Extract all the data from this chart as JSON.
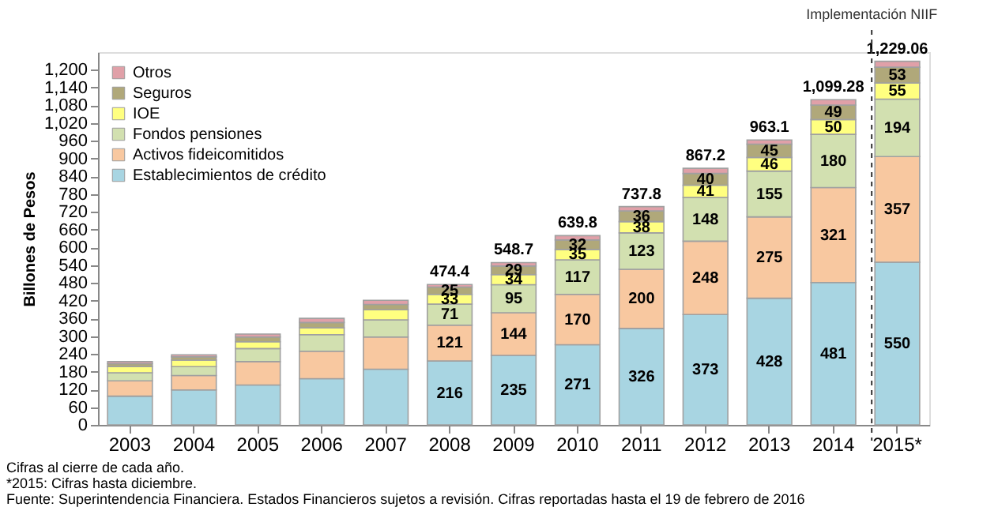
{
  "chart_data": {
    "type": "bar",
    "stacked": true,
    "ylabel": "Billones de Pesos",
    "categories": [
      "2003",
      "2004",
      "2005",
      "2006",
      "2007",
      "2008",
      "2009",
      "2010",
      "2011",
      "2012",
      "2013",
      "2014",
      "2015*"
    ],
    "series": [
      {
        "name": "Establecimientos de crédito",
        "color": "#a8d5e2",
        "values": [
          97,
          118,
          135,
          156,
          188,
          216,
          235,
          271,
          326,
          373,
          428,
          481,
          550
        ],
        "value_labels": [
          null,
          null,
          null,
          null,
          null,
          "216",
          "235",
          "271",
          "326",
          "373",
          "428",
          "481",
          "550"
        ]
      },
      {
        "name": "Activos fideicomitidos",
        "color": "#f8c8a0",
        "values": [
          52,
          49,
          79,
          93,
          109,
          121,
          144,
          170,
          200,
          248,
          275,
          321,
          357
        ],
        "value_labels": [
          null,
          null,
          null,
          null,
          null,
          "121",
          "144",
          "170",
          "200",
          "248",
          "275",
          "321",
          "357"
        ]
      },
      {
        "name": "Fondos pensiones",
        "color": "#d2e0b0",
        "values": [
          27,
          30,
          44,
          56,
          58,
          71,
          95,
          117,
          123,
          148,
          155,
          180,
          194
        ],
        "value_labels": [
          null,
          null,
          null,
          null,
          null,
          "71",
          "95",
          "117",
          "123",
          "148",
          "155",
          "180",
          "194"
        ]
      },
      {
        "name": "IOE",
        "color": "#ffff80",
        "values": [
          21,
          22,
          23,
          23,
          34,
          33,
          34,
          35,
          38,
          41,
          46,
          50,
          55
        ],
        "value_labels": [
          null,
          null,
          null,
          null,
          null,
          "33",
          "34",
          "35",
          "38",
          "41",
          "46",
          "50",
          "55"
        ]
      },
      {
        "name": "Seguros",
        "color": "#b0a87a",
        "values": [
          10,
          11,
          16,
          18,
          18,
          25,
          29,
          32,
          36,
          40,
          45,
          49,
          53
        ],
        "value_labels": [
          null,
          null,
          null,
          null,
          null,
          "25",
          "29",
          "32",
          "36",
          "40",
          "45",
          "49",
          "53"
        ]
      },
      {
        "name": "Otros",
        "color": "#e0a0a8",
        "values": [
          7,
          7,
          10,
          14,
          14,
          8.4,
          11.7,
          14.8,
          14.8,
          17.2,
          14.1,
          18.28,
          20.06
        ]
      }
    ],
    "totals": [
      null,
      null,
      null,
      null,
      null,
      "474.4",
      "548.7",
      "639.8",
      "737.8",
      "867.2",
      "963.1",
      "1,099.28",
      "1,229.06"
    ],
    "ylim": [
      0,
      1260
    ],
    "yticks": [
      0,
      60,
      120,
      180,
      240,
      300,
      360,
      420,
      480,
      540,
      600,
      660,
      720,
      780,
      840,
      900,
      960,
      {
        "value": 1020,
        "label": "1,020"
      },
      {
        "value": 1080,
        "label": "1,080"
      },
      {
        "value": 1140,
        "label": "1,140"
      },
      {
        "value": 1200,
        "label": "1,200"
      }
    ],
    "ref_lines": [
      {
        "axis": "x",
        "value": "2015*",
        "label": "Implementación NIIF",
        "line_style": "dashed",
        "color": "#333333"
      }
    ],
    "legend": "top left",
    "grid": false,
    "annotations": [
      "Cifras al cierre de cada año.",
      "*2015: Cifras hasta diciembre.",
      "Fuente: Superintendencia Financiera. Estados Financieros sujetos a revisión. Cifras reportadas hasta el 19 de febrero de 2016"
    ]
  }
}
